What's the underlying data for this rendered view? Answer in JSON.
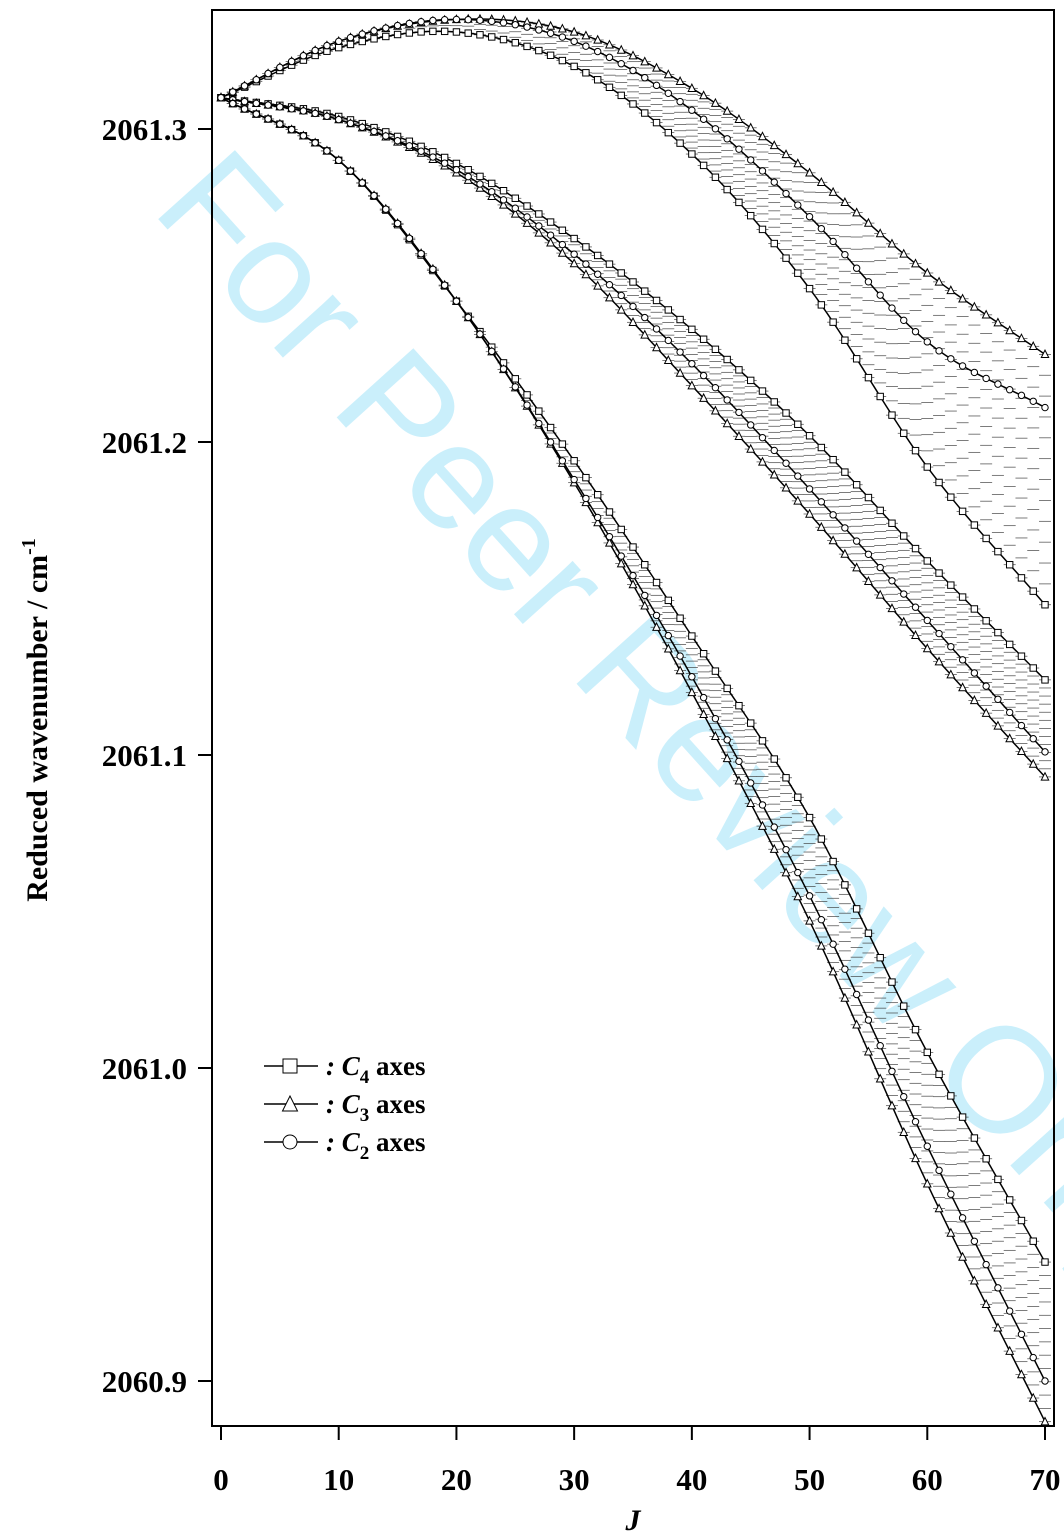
{
  "watermark": "For Peer Review Only",
  "chart_data": {
    "type": "line",
    "xlabel": "J",
    "ylabel": "Reduced wavenumber / cm",
    "ylabel_superscript": "-1",
    "xlim": [
      -1,
      71
    ],
    "ylim": [
      2060.886,
      2061.338
    ],
    "x_ticks": [
      0,
      10,
      20,
      30,
      40,
      50,
      60,
      70
    ],
    "y_ticks": [
      2060.9,
      2061.0,
      2061.1,
      2061.2,
      2061.3
    ],
    "y_tick_labels": [
      "2060.9",
      "2061.0",
      "2061.1",
      "2061.2",
      "2061.3"
    ],
    "x_tick_labels": [
      "0",
      "10",
      "20",
      "30",
      "40",
      "50",
      "60",
      "70"
    ],
    "grid": false,
    "legend_position": "lower-left",
    "legend": [
      {
        "prefix": ": C",
        "sub": "4",
        "suffix": " axes",
        "marker": "square"
      },
      {
        "prefix": ": C",
        "sub": "3",
        "suffix": " axes",
        "marker": "triangle"
      },
      {
        "prefix": ": C",
        "sub": "2",
        "suffix": " axes",
        "marker": "circle"
      }
    ],
    "branches": [
      {
        "name": "upper",
        "series": [
          {
            "marker": "square",
            "x": [
              0,
              10,
              20,
              30,
              40,
              50,
              60,
              70
            ],
            "y": [
              2061.31,
              2061.326,
              2061.331,
              2061.32,
              2061.292,
              2061.249,
              2061.192,
              2061.148
            ]
          },
          {
            "marker": "triangle",
            "x": [
              0,
              10,
              20,
              30,
              40,
              50,
              60,
              70
            ],
            "y": [
              2061.31,
              2061.328,
              2061.335,
              2061.331,
              2061.313,
              2061.286,
              2061.254,
              2061.228
            ]
          },
          {
            "marker": "circle",
            "x": [
              0,
              10,
              20,
              30,
              40,
              50,
              60,
              70
            ],
            "y": [
              2061.31,
              2061.328,
              2061.335,
              2061.328,
              2061.306,
              2061.272,
              2061.232,
              2061.211
            ]
          }
        ]
      },
      {
        "name": "middle",
        "series": [
          {
            "marker": "square",
            "x": [
              0,
              10,
              20,
              30,
              40,
              50,
              60,
              70
            ],
            "y": [
              2061.31,
              2061.304,
              2061.289,
              2061.265,
              2061.236,
              2061.202,
              2061.162,
              2061.124
            ]
          },
          {
            "marker": "triangle",
            "x": [
              0,
              10,
              20,
              30,
              40,
              50,
              60,
              70
            ],
            "y": [
              2061.31,
              2061.303,
              2061.286,
              2061.257,
              2061.218,
              2061.177,
              2061.134,
              2061.093
            ]
          },
          {
            "marker": "circle",
            "x": [
              0,
              10,
              20,
              30,
              40,
              50,
              60,
              70
            ],
            "y": [
              2061.31,
              2061.303,
              2061.287,
              2061.26,
              2061.225,
              2061.185,
              2061.143,
              2061.101
            ]
          }
        ]
      },
      {
        "name": "lower",
        "series": [
          {
            "marker": "square",
            "x": [
              0,
              10,
              20,
              30,
              40,
              50,
              60,
              70
            ],
            "y": [
              2061.31,
              2061.29,
              2061.245,
              2061.194,
              2061.138,
              2061.08,
              2061.005,
              2060.938
            ]
          },
          {
            "marker": "triangle",
            "x": [
              0,
              10,
              20,
              30,
              40,
              50,
              60,
              70
            ],
            "y": [
              2061.31,
              2061.29,
              2061.245,
              2061.187,
              2061.12,
              2061.047,
              2060.963,
              2060.887
            ]
          },
          {
            "marker": "circle",
            "x": [
              0,
              10,
              20,
              30,
              40,
              50,
              60,
              70
            ],
            "y": [
              2061.31,
              2061.29,
              2061.245,
              2061.188,
              2061.125,
              2061.055,
              2060.975,
              2060.9
            ]
          }
        ]
      }
    ]
  }
}
